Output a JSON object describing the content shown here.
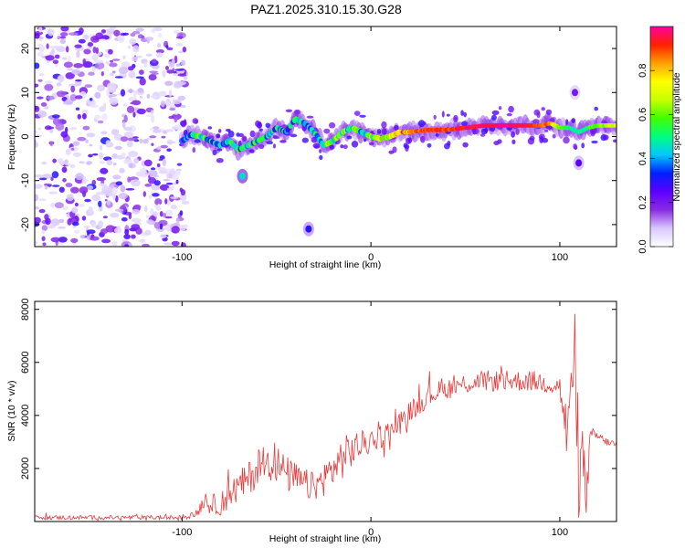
{
  "figure": {
    "title": "PAZ1.2025.310.15.30.G28"
  },
  "chart_data": [
    {
      "type": "heatmap",
      "name": "spectrogram",
      "xlabel": "Height of straight line (km)",
      "ylabel": "Frequency (Hz)",
      "xlim": [
        -178,
        130
      ],
      "ylim": [
        -25,
        25
      ],
      "xticks": [
        -100,
        0,
        100
      ],
      "yticks": [
        -20,
        -10,
        0,
        10,
        20
      ],
      "colorbar": {
        "label": "Normalized spectral amplitude",
        "range": [
          0,
          1
        ],
        "ticks": [
          "0.0",
          "0.2",
          "0.4",
          "0.6",
          "0.8"
        ],
        "tick_values": [
          0,
          0.2,
          0.4,
          0.6,
          0.8
        ],
        "colors": [
          "#ffffff",
          "#d8c8ff",
          "#8a2be2",
          "#5a00ff",
          "#0020ff",
          "#00c8ff",
          "#00ff80",
          "#40ff00",
          "#c8ff00",
          "#ffff00",
          "#ffa000",
          "#ff2000",
          "#ff00a0"
        ]
      },
      "noise_region_x": [
        -178,
        -100
      ],
      "ridge": {
        "x": [
          -100,
          -95,
          -90,
          -85,
          -80,
          -75,
          -70,
          -65,
          -60,
          -55,
          -50,
          -45,
          -40,
          -35,
          -30,
          -25,
          -20,
          -15,
          -10,
          -5,
          0,
          5,
          10,
          15,
          20,
          30,
          40,
          50,
          60,
          70,
          80,
          90,
          95,
          100,
          105,
          110,
          115,
          120,
          125,
          130
        ],
        "y": [
          -1,
          0.5,
          0,
          -1,
          -2,
          -1,
          -3,
          -2,
          -1,
          0,
          2,
          1,
          4,
          3,
          1,
          -2,
          -1,
          1,
          2,
          1,
          0,
          -0.5,
          0,
          1,
          1,
          1.5,
          1.5,
          2,
          2.5,
          2.5,
          2.5,
          2.5,
          3,
          2,
          2,
          1,
          2,
          2.5,
          2.5,
          2.5
        ],
        "amp": [
          0.3,
          0.45,
          0.5,
          0.4,
          0.35,
          0.4,
          0.45,
          0.45,
          0.45,
          0.4,
          0.45,
          0.35,
          0.4,
          0.4,
          0.45,
          0.5,
          0.55,
          0.55,
          0.55,
          0.5,
          0.6,
          0.65,
          0.7,
          0.8,
          0.85,
          0.9,
          0.9,
          0.95,
          0.95,
          1.0,
          0.95,
          0.9,
          0.85,
          0.6,
          0.5,
          0.45,
          0.55,
          0.6,
          0.65,
          0.7
        ]
      },
      "features": [
        {
          "x": -68,
          "y": -9,
          "amp": 0.45
        },
        {
          "x": -33,
          "y": -21,
          "amp": 0.3
        },
        {
          "x": 110,
          "y": -6,
          "amp": 0.25
        },
        {
          "x": 108,
          "y": 10,
          "amp": 0.2
        }
      ]
    },
    {
      "type": "line",
      "name": "snr",
      "xlabel": "Height of straight line (km)",
      "ylabel": "SNR (10 * v/v)",
      "xlim": [
        -178,
        130
      ],
      "ylim": [
        0,
        8300
      ],
      "xticks": [
        -100,
        0,
        100
      ],
      "yticks": [
        2000,
        4000,
        6000,
        8000
      ],
      "color": "#e83a3a",
      "envelope": {
        "x": [
          -178,
          -100,
          -92,
          -88,
          -85,
          -80,
          -75,
          -70,
          -65,
          -60,
          -55,
          -50,
          -45,
          -40,
          -35,
          -30,
          -25,
          -20,
          -15,
          -10,
          -5,
          0,
          5,
          10,
          15,
          20,
          25,
          30,
          35,
          40,
          45,
          50,
          55,
          60,
          65,
          70,
          75,
          80,
          85,
          90,
          95,
          100,
          102,
          104,
          106,
          108,
          110,
          112,
          114,
          116,
          118,
          120,
          125,
          130
        ],
        "value": [
          150,
          150,
          300,
          900,
          600,
          700,
          1000,
          1300,
          1600,
          2000,
          2400,
          2200,
          1800,
          1600,
          1400,
          1300,
          1600,
          2000,
          2400,
          2700,
          2900,
          3000,
          3200,
          3400,
          3700,
          4100,
          4400,
          4700,
          4900,
          5000,
          5100,
          5200,
          5250,
          5300,
          5300,
          5300,
          5300,
          5300,
          5300,
          5250,
          5200,
          5100,
          4200,
          2500,
          6500,
          4000,
          1500,
          2500,
          900,
          3000,
          3300,
          3200,
          3000,
          2900
        ],
        "spread": [
          80,
          80,
          150,
          400,
          350,
          500,
          550,
          600,
          650,
          700,
          800,
          750,
          700,
          650,
          600,
          550,
          650,
          750,
          800,
          700,
          550,
          450,
          450,
          450,
          450,
          400,
          400,
          400,
          400,
          400,
          400,
          400,
          400,
          400,
          400,
          400,
          400,
          400,
          400,
          400,
          400,
          400,
          1400,
          1400,
          1800,
          1800,
          1400,
          1400,
          800,
          400,
          250,
          200,
          150,
          150
        ]
      }
    }
  ]
}
